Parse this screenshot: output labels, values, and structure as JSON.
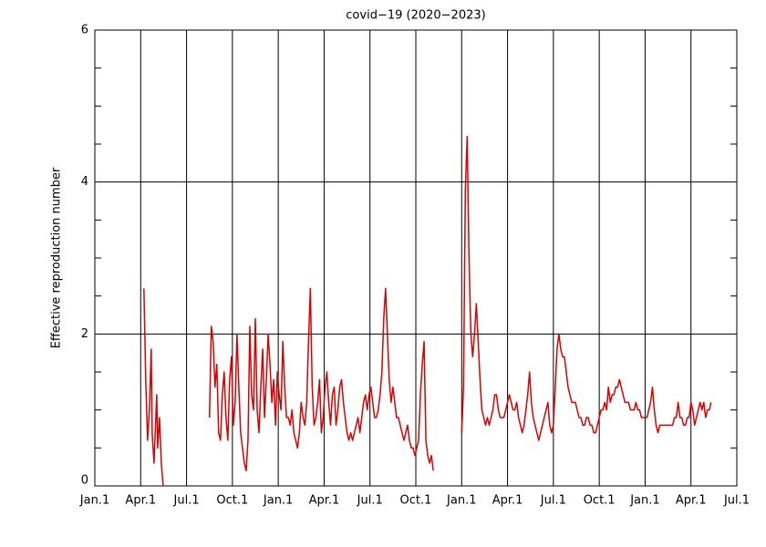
{
  "chart_data": {
    "type": "line",
    "title": "covid−19 (2020−2023)",
    "y_label": "Effective reproduction number",
    "color": "#dd0000",
    "grid": true,
    "xlim": [
      0,
      14
    ],
    "xticks": [
      {
        "value": 0,
        "label": "Jan.1"
      },
      {
        "value": 1,
        "label": "Apr.1"
      },
      {
        "value": 2,
        "label": "Jul.1"
      },
      {
        "value": 3,
        "label": "Oct.1"
      },
      {
        "value": 4,
        "label": "Jan.1"
      },
      {
        "value": 5,
        "label": "Apr.1"
      },
      {
        "value": 6,
        "label": "Jul.1"
      },
      {
        "value": 7,
        "label": "Oct.1"
      },
      {
        "value": 8,
        "label": "Jan.1"
      },
      {
        "value": 9,
        "label": "Apr.1"
      },
      {
        "value": 10,
        "label": "Jul.1"
      },
      {
        "value": 11,
        "label": "Oct.1"
      },
      {
        "value": 12,
        "label": "Jan.1"
      },
      {
        "value": 13,
        "label": "Apr.1"
      },
      {
        "value": 14,
        "label": "Jul.1"
      }
    ],
    "ylim": [
      0,
      6
    ],
    "yticks": [
      0,
      2,
      4,
      6
    ],
    "y_minor_ticks": [
      0.5,
      1,
      1.5,
      2.5,
      3,
      3.5,
      4.5,
      5,
      5.5
    ],
    "x": [
      1.07,
      1.11,
      1.15,
      1.19,
      1.23,
      1.25,
      1.29,
      1.35,
      1.37,
      1.41,
      1.45,
      1.49,
      2.0,
      2.5,
      2.54,
      2.58,
      2.62,
      2.66,
      2.7,
      2.74,
      2.78,
      2.82,
      2.86,
      2.9,
      2.94,
      2.98,
      3.02,
      3.06,
      3.1,
      3.14,
      3.18,
      3.22,
      3.26,
      3.3,
      3.34,
      3.38,
      3.42,
      3.46,
      3.5,
      3.54,
      3.58,
      3.62,
      3.66,
      3.7,
      3.74,
      3.78,
      3.82,
      3.86,
      3.9,
      3.94,
      3.98,
      4.02,
      4.06,
      4.1,
      4.14,
      4.18,
      4.22,
      4.26,
      4.3,
      4.34,
      4.38,
      4.42,
      4.46,
      4.5,
      4.54,
      4.58,
      4.62,
      4.66,
      4.7,
      4.74,
      4.78,
      4.82,
      4.86,
      4.9,
      4.94,
      4.98,
      5.02,
      5.06,
      5.1,
      5.14,
      5.18,
      5.22,
      5.26,
      5.3,
      5.34,
      5.38,
      5.42,
      5.46,
      5.5,
      5.54,
      5.58,
      5.62,
      5.66,
      5.7,
      5.74,
      5.78,
      5.82,
      5.86,
      5.9,
      5.94,
      5.98,
      6.02,
      6.06,
      6.1,
      6.14,
      6.18,
      6.22,
      6.26,
      6.3,
      6.34,
      6.38,
      6.42,
      6.46,
      6.5,
      6.54,
      6.58,
      6.62,
      6.66,
      6.7,
      6.74,
      6.78,
      6.82,
      6.86,
      6.9,
      6.94,
      6.98,
      7.02,
      7.06,
      7.1,
      7.14,
      7.18,
      7.22,
      7.26,
      7.3,
      7.34,
      7.38,
      7.7,
      8.0,
      8.04,
      8.08,
      8.12,
      8.16,
      8.2,
      8.24,
      8.28,
      8.32,
      8.36,
      8.4,
      8.44,
      8.48,
      8.52,
      8.56,
      8.6,
      8.64,
      8.68,
      8.72,
      8.76,
      8.8,
      8.84,
      8.88,
      8.92,
      8.96,
      9.0,
      9.04,
      9.08,
      9.12,
      9.16,
      9.2,
      9.24,
      9.28,
      9.32,
      9.36,
      9.4,
      9.44,
      9.48,
      9.52,
      9.56,
      9.6,
      9.64,
      9.68,
      9.72,
      9.76,
      9.8,
      9.84,
      9.88,
      9.92,
      9.96,
      10.0,
      10.04,
      10.08,
      10.12,
      10.16,
      10.2,
      10.24,
      10.28,
      10.32,
      10.36,
      10.4,
      10.44,
      10.48,
      10.52,
      10.56,
      10.6,
      10.64,
      10.68,
      10.72,
      10.76,
      10.8,
      10.84,
      10.88,
      10.92,
      10.96,
      11.0,
      11.04,
      11.08,
      11.12,
      11.16,
      11.2,
      11.24,
      11.28,
      11.32,
      11.36,
      11.4,
      11.44,
      11.48,
      11.52,
      11.56,
      11.6,
      11.64,
      11.68,
      11.72,
      11.76,
      11.8,
      11.84,
      11.88,
      11.92,
      11.96,
      12.0,
      12.04,
      12.08,
      12.12,
      12.16,
      12.2,
      12.24,
      12.28,
      12.32,
      12.36,
      12.4,
      12.44,
      12.48,
      12.52,
      12.56,
      12.6,
      12.64,
      12.68,
      12.72,
      12.76,
      12.8,
      12.84,
      12.88,
      12.92,
      12.96,
      13.0,
      13.04,
      13.08,
      13.12,
      13.16,
      13.2,
      13.24,
      13.28,
      13.32,
      13.36,
      13.4,
      13.44
    ],
    "values": [
      2.6,
      1.4,
      0.6,
      1.0,
      1.8,
      0.7,
      0.3,
      1.2,
      0.5,
      0.9,
      0.3,
      0,
      null,
      0.9,
      2.1,
      1.9,
      1.3,
      1.6,
      0.7,
      0.6,
      1.2,
      1.5,
      0.9,
      0.6,
      1.4,
      1.7,
      0.8,
      1.1,
      2.0,
      1.3,
      0.7,
      0.5,
      0.3,
      0.2,
      0.6,
      2.1,
      1.2,
      1.0,
      2.2,
      1.0,
      0.7,
      1.3,
      1.8,
      0.9,
      1.4,
      2.0,
      1.6,
      1.1,
      1.4,
      0.8,
      1.5,
      1.2,
      1.0,
      1.9,
      1.3,
      0.9,
      0.9,
      0.8,
      1.0,
      0.7,
      0.6,
      0.5,
      0.7,
      1.1,
      0.9,
      0.8,
      1.1,
      1.9,
      2.6,
      1.3,
      0.8,
      0.9,
      1.1,
      1.4,
      0.7,
      0.9,
      1.3,
      1.5,
      1.1,
      0.8,
      1.2,
      1.3,
      0.8,
      1.0,
      1.3,
      1.4,
      1.1,
      0.9,
      0.7,
      0.6,
      0.7,
      0.6,
      0.7,
      0.8,
      0.9,
      0.7,
      0.9,
      1.1,
      1.2,
      1.0,
      1.2,
      1.3,
      1.1,
      0.9,
      0.9,
      1.0,
      1.2,
      1.5,
      2.2,
      2.6,
      2.0,
      1.4,
      1.1,
      1.3,
      1.1,
      0.9,
      0.9,
      0.8,
      0.7,
      0.6,
      0.7,
      0.8,
      0.6,
      0.5,
      0.5,
      0.4,
      0.5,
      0.6,
      1.2,
      1.6,
      1.9,
      0.6,
      0.4,
      0.3,
      0.4,
      0.2,
      null,
      0.7,
      1.3,
      3.9,
      4.6,
      3.0,
      2.0,
      1.7,
      2.0,
      2.4,
      1.9,
      1.4,
      1.0,
      0.9,
      0.8,
      0.9,
      0.8,
      0.9,
      1.0,
      1.2,
      1.2,
      1.0,
      0.9,
      0.9,
      0.9,
      1.0,
      1.1,
      1.2,
      1.1,
      1.0,
      1.0,
      1.1,
      0.9,
      0.8,
      0.7,
      0.8,
      1.0,
      1.2,
      1.5,
      1.1,
      0.9,
      0.8,
      0.7,
      0.6,
      0.7,
      0.8,
      0.9,
      1.0,
      1.1,
      0.8,
      0.7,
      0.8,
      1.3,
      1.8,
      2.0,
      1.8,
      1.7,
      1.7,
      1.5,
      1.3,
      1.2,
      1.1,
      1.1,
      1.1,
      1.0,
      0.9,
      0.9,
      0.8,
      0.8,
      0.9,
      0.9,
      0.8,
      0.8,
      0.7,
      0.7,
      0.8,
      0.9,
      1.0,
      1.0,
      1.1,
      1.0,
      1.3,
      1.1,
      1.2,
      1.2,
      1.3,
      1.3,
      1.4,
      1.3,
      1.2,
      1.1,
      1.1,
      1.1,
      1.0,
      1.0,
      1.0,
      1.1,
      1.0,
      1.0,
      0.9,
      0.9,
      0.9,
      0.9,
      1.0,
      1.1,
      1.3,
      1.0,
      0.8,
      0.7,
      0.8,
      0.8,
      0.8,
      0.8,
      0.8,
      0.8,
      0.8,
      0.8,
      0.9,
      0.9,
      1.1,
      0.9,
      0.9,
      0.8,
      0.8,
      0.9,
      0.9,
      1.1,
      1.0,
      0.8,
      0.9,
      1.0,
      1.1,
      1.0,
      1.1,
      0.9,
      1.0,
      1.0,
      1.1
    ]
  }
}
